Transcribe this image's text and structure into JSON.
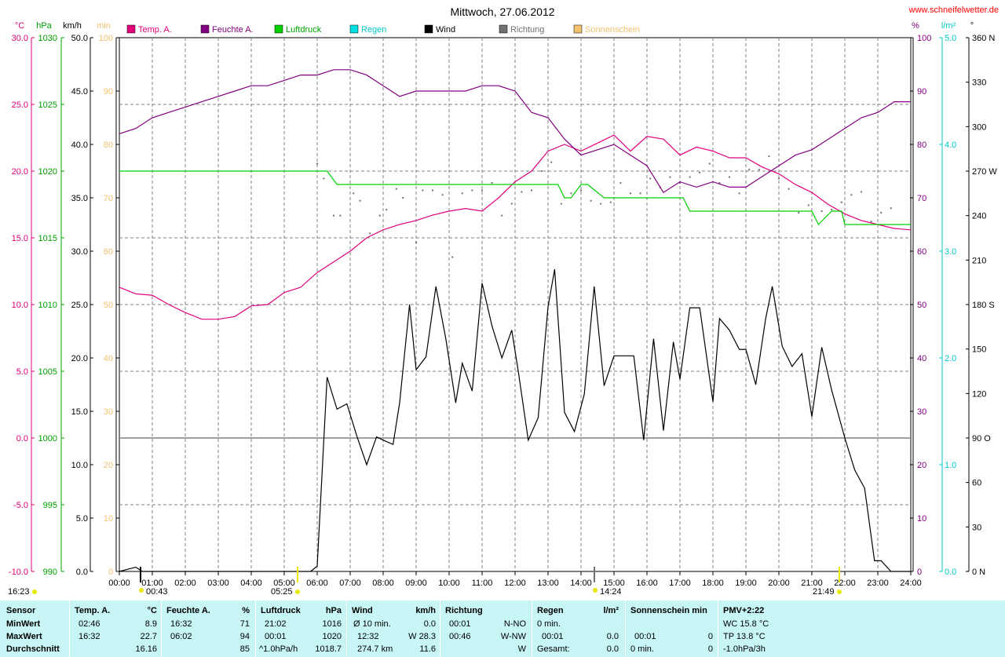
{
  "header": {
    "title": "Mittwoch, 27.06.2012",
    "website": "www.schneifelwetter.de",
    "units_left": [
      "°C",
      "hPa",
      "km/h",
      "min"
    ],
    "units_right": [
      "%",
      "l/m²",
      "°"
    ],
    "legend": [
      {
        "label": "Temp. A.",
        "color": "#e0007c"
      },
      {
        "label": "Feuchte A.",
        "color": "#800080"
      },
      {
        "label": "Luftdruck",
        "color": "#00d000"
      },
      {
        "label": "Regen",
        "color": "#00e0e0"
      },
      {
        "label": "Wind",
        "color": "#000000"
      },
      {
        "label": "Richtung",
        "color": "#707070"
      },
      {
        "label": "Sonnenschein",
        "color": "#f5c070"
      }
    ]
  },
  "chart_data": {
    "type": "line",
    "title": "Mittwoch, 27.06.2012",
    "x_ticks": [
      "00:00",
      "01:00",
      "02:00",
      "03:00",
      "04:00",
      "05:00",
      "06:00",
      "07:00",
      "08:00",
      "09:00",
      "10:00",
      "11:00",
      "12:00",
      "13:00",
      "14:00",
      "15:00",
      "16:00",
      "17:00",
      "18:00",
      "19:00",
      "20:00",
      "21:00",
      "22:00",
      "23:00",
      "24:00"
    ],
    "axes": {
      "temp": {
        "label": "°C",
        "ticks": [
          "30.0",
          "25.0",
          "20.0",
          "15.0",
          "10.0",
          "5.0",
          "0.0",
          "-5.0",
          "-10.0"
        ],
        "ylim": [
          -10,
          30
        ],
        "color": "#e0007c"
      },
      "pressure": {
        "label": "hPa",
        "ticks": [
          "1030",
          "1025",
          "1020",
          "1015",
          "1010",
          "1005",
          "1000",
          "995",
          "990"
        ],
        "ylim": [
          990,
          1030
        ],
        "color": "#00a000"
      },
      "wind": {
        "label": "km/h",
        "ticks": [
          "50.0",
          "45.0",
          "40.0",
          "35.0",
          "30.0",
          "25.0",
          "20.0",
          "15.0",
          "10.0",
          "5.0",
          "0.0"
        ],
        "ylim": [
          0,
          50
        ],
        "color": "#000000"
      },
      "sun": {
        "label": "min",
        "ticks": [
          "100",
          "90",
          "80",
          "70",
          "60",
          "50",
          "40",
          "30",
          "20",
          "10",
          "0"
        ],
        "ylim": [
          0,
          100
        ],
        "color": "#f5c070"
      },
      "humidity": {
        "label": "%",
        "ticks": [
          "100",
          "90",
          "80",
          "70",
          "60",
          "50",
          "40",
          "30",
          "20",
          "10",
          "0"
        ],
        "ylim": [
          0,
          100
        ],
        "color": "#800080"
      },
      "rain": {
        "label": "l/m²",
        "ticks": [
          "5.0",
          "4.0",
          "3.0",
          "2.0",
          "1.0",
          "0.0"
        ],
        "ylim": [
          0,
          5
        ],
        "color": "#00c8c8"
      },
      "direction": {
        "label": "°",
        "ticks": [
          "360 N",
          "330",
          "300",
          "270 W",
          "240",
          "210",
          "180 S",
          "150",
          "120",
          "90 O",
          "60",
          "30",
          "0 N"
        ],
        "ylim": [
          0,
          360
        ],
        "color": "#000000"
      }
    },
    "series": [
      {
        "name": "Temp. A.",
        "axis": "temp",
        "color": "#e0007c",
        "x": [
          0,
          0.5,
          1,
          1.5,
          2,
          2.5,
          3,
          3.5,
          4,
          4.5,
          5,
          5.5,
          6,
          6.5,
          7,
          7.5,
          8,
          8.5,
          9,
          9.5,
          10,
          10.5,
          11,
          11.5,
          12,
          12.5,
          13,
          13.5,
          14,
          14.5,
          15,
          15.5,
          16,
          16.5,
          17,
          17.5,
          18,
          18.5,
          19,
          19.5,
          20,
          20.5,
          21,
          21.5,
          22,
          22.5,
          23,
          23.5,
          24
        ],
        "y": [
          11.3,
          10.8,
          10.7,
          10.0,
          9.4,
          8.9,
          8.9,
          9.1,
          9.9,
          10.0,
          10.9,
          11.3,
          12.4,
          13.2,
          14.0,
          15.0,
          15.6,
          16.0,
          16.3,
          16.7,
          17.0,
          17.2,
          17.0,
          18.0,
          19.2,
          20.0,
          21.5,
          22.0,
          21.5,
          22.1,
          22.7,
          21.5,
          22.6,
          22.4,
          21.2,
          21.8,
          21.5,
          21.0,
          21.0,
          20.3,
          19.8,
          19.0,
          18.4,
          17.5,
          16.8,
          16.3,
          16.0,
          15.7,
          15.6
        ]
      },
      {
        "name": "Feuchte A.",
        "axis": "humidity",
        "color": "#800080",
        "x": [
          0,
          0.5,
          1,
          1.5,
          2,
          2.5,
          3,
          3.5,
          4,
          4.5,
          5,
          5.5,
          6,
          6.5,
          7,
          7.5,
          8,
          8.5,
          9,
          9.5,
          10,
          10.5,
          11,
          11.5,
          12,
          12.5,
          13,
          13.5,
          14,
          14.5,
          15,
          15.5,
          16,
          16.5,
          17,
          17.5,
          18,
          18.5,
          19,
          19.5,
          20,
          20.5,
          21,
          21.5,
          22,
          22.5,
          23,
          23.5,
          24
        ],
        "y": [
          82,
          83,
          85,
          86,
          87,
          88,
          89,
          90,
          91,
          91,
          92,
          93,
          93,
          94,
          94,
          93,
          91,
          89,
          90,
          90,
          90,
          90,
          91,
          91,
          90,
          86,
          85,
          81,
          78,
          79,
          80,
          78,
          76,
          71,
          73,
          72,
          73,
          72,
          72,
          74,
          76,
          78,
          79,
          81,
          83,
          85,
          86,
          88,
          88
        ]
      },
      {
        "name": "Luftdruck",
        "axis": "pressure",
        "color": "#00d000",
        "x": [
          0,
          6.3,
          6.6,
          13.3,
          13.5,
          13.7,
          14.0,
          14.2,
          14.7,
          15.0,
          17.1,
          17.3,
          21.0,
          21.2,
          21.6,
          21.9,
          22.0,
          24
        ],
        "y": [
          1020.0,
          1020.0,
          1019.0,
          1019.0,
          1018.0,
          1018.0,
          1019.0,
          1019.0,
          1018.0,
          1018.0,
          1018.0,
          1017.0,
          1017.0,
          1016.0,
          1017.0,
          1017.0,
          1016.0,
          1016.0
        ]
      },
      {
        "name": "Wind",
        "axis": "wind",
        "color": "#000000",
        "x": [
          0,
          0.5,
          0.7,
          5.8,
          6.0,
          6.3,
          6.6,
          6.9,
          7.2,
          7.5,
          7.8,
          8.0,
          8.3,
          8.5,
          8.8,
          9.0,
          9.3,
          9.6,
          9.9,
          10.2,
          10.4,
          10.7,
          11.0,
          11.3,
          11.6,
          11.9,
          12.1,
          12.4,
          12.7,
          13.0,
          13.2,
          13.5,
          13.8,
          14.1,
          14.4,
          14.7,
          15.0,
          15.3,
          15.6,
          15.9,
          16.2,
          16.5,
          16.8,
          17.0,
          17.3,
          17.6,
          18.0,
          18.2,
          18.5,
          18.8,
          19.0,
          19.3,
          19.6,
          19.8,
          20.1,
          20.4,
          20.7,
          21.0,
          21.3,
          21.6,
          22.0,
          22.3,
          22.6,
          22.9,
          23.1,
          23.4,
          23.6,
          24
        ],
        "y": [
          0,
          0.4,
          0,
          0,
          0.5,
          18.2,
          15.2,
          15.7,
          12.7,
          10.0,
          12.6,
          12.3,
          11.9,
          15.8,
          25.0,
          18.9,
          20.1,
          26.7,
          21.8,
          15.8,
          19.5,
          16.9,
          27.0,
          23.0,
          20.0,
          22.6,
          18.7,
          12.3,
          14.4,
          24.8,
          28.3,
          14.9,
          13.1,
          16.6,
          26.7,
          17.4,
          20.2,
          20.2,
          20.2,
          12.3,
          21.8,
          13.2,
          21.5,
          18.0,
          24.7,
          24.7,
          15.9,
          23.7,
          22.6,
          20.8,
          20.8,
          17.5,
          23.7,
          26.7,
          21.1,
          19.2,
          20.4,
          14.5,
          21.0,
          17.0,
          12.5,
          9.5,
          7.8,
          1.0,
          1.0,
          0.0,
          0.0,
          0.0
        ]
      }
    ],
    "direction_points": {
      "axis": "direction",
      "x": [
        6.0,
        6.2,
        6.5,
        6.7,
        7.1,
        7.3,
        7.6,
        7.9,
        8.1,
        8.4,
        8.6,
        9.0,
        9.2,
        9.5,
        9.8,
        10.1,
        10.4,
        10.7,
        11.0,
        11.3,
        11.6,
        11.9,
        12.2,
        12.5,
        12.8,
        13.1,
        13.4,
        13.7,
        14.0,
        14.3,
        14.6,
        14.9,
        15.2,
        15.5,
        15.8,
        16.1,
        16.4,
        16.7,
        17.0,
        17.3,
        17.6,
        17.9,
        18.2,
        18.5,
        18.8,
        19.1,
        19.4,
        19.7,
        20.0,
        20.3,
        20.6,
        20.9,
        21.3,
        21.6,
        21.9,
        22.2,
        22.5,
        22.8,
        23.1,
        23.4
      ],
      "y": [
        275,
        265,
        240,
        240,
        255,
        250,
        228,
        240,
        244,
        258,
        252,
        222,
        257,
        257,
        254,
        212,
        255,
        257,
        257,
        262,
        240,
        248,
        256,
        257,
        270,
        276,
        248,
        255,
        257,
        250,
        248,
        249,
        262,
        255,
        255,
        265,
        259,
        266,
        262,
        266,
        269,
        275,
        262,
        266,
        255,
        271,
        271,
        280,
        265,
        258,
        242,
        247,
        243,
        244,
        249,
        254,
        256,
        236,
        242,
        245
      ]
    },
    "reference_lines": {
      "temp_zero": 0.0
    },
    "markers": [
      {
        "label": "16:23",
        "color": "#e8e800"
      },
      {
        "label": "00:43",
        "color": "#e8e800"
      },
      {
        "label": "05:25",
        "color": "#e8e800"
      },
      {
        "label": "14:24",
        "color": "#e8e800"
      },
      {
        "label": "21:49",
        "color": "#e8e800"
      }
    ],
    "grid": true
  },
  "stats": {
    "sensor": {
      "header": "Sensor",
      "rows": [
        "MinWert",
        "MaxWert",
        "Durchschnitt"
      ]
    },
    "temp": {
      "header": "Temp. A.",
      "unit": "°C",
      "time": [
        "02:46",
        "16:32",
        ""
      ],
      "value": [
        "8.9",
        "22.7",
        "16.16"
      ]
    },
    "humidity": {
      "header": "Feuchte A.",
      "unit": "%",
      "time": [
        "16:32",
        "06:02",
        ""
      ],
      "value": [
        "71",
        "94",
        "85"
      ]
    },
    "pressure": {
      "header": "Luftdruck",
      "unit": "hPa",
      "time": [
        "21:02",
        "00:01",
        "^1.0hPa/h"
      ],
      "value": [
        "1016",
        "1020",
        "1018.7"
      ]
    },
    "wind": {
      "header": "Wind",
      "unit": "km/h",
      "time": [
        "Ø 10 min.",
        "12:32",
        "274.7 km"
      ],
      "value": [
        "0.0",
        "W 28.3",
        "11.6"
      ]
    },
    "direction": {
      "header": "Richtung",
      "time": [
        "00:01",
        "00:46",
        ""
      ],
      "value": [
        "N-NO",
        "W-NW",
        "W"
      ]
    },
    "rain": {
      "header": "Regen",
      "unit": "l/m²",
      "time": [
        "0 min.",
        "00:01",
        "Gesamt:"
      ],
      "value": [
        "",
        "0.0",
        "0.0"
      ]
    },
    "sun": {
      "header": "Sonnenschein min",
      "time": [
        "",
        "00:01",
        "0 min."
      ],
      "value": [
        "",
        "0",
        "0"
      ]
    },
    "pmv": {
      "header": "PMV+2:22",
      "lines": [
        "WC 15.8 °C",
        "TP 13.8 °C",
        "-1.0hPa/3h"
      ]
    }
  }
}
